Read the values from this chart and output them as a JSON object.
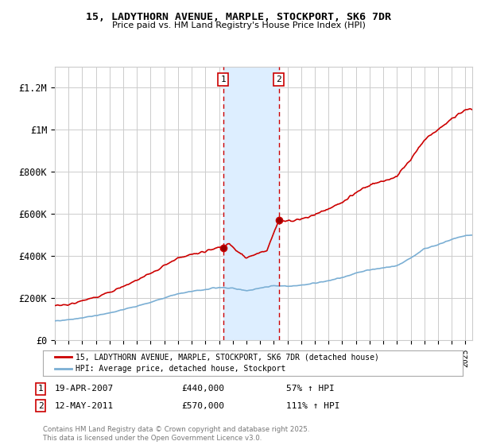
{
  "title": "15, LADYTHORN AVENUE, MARPLE, STOCKPORT, SK6 7DR",
  "subtitle": "Price paid vs. HM Land Registry's House Price Index (HPI)",
  "ylabel_ticks": [
    "£0",
    "£200K",
    "£400K",
    "£600K",
    "£800K",
    "£1M",
    "£1.2M"
  ],
  "ytick_values": [
    0,
    200000,
    400000,
    600000,
    800000,
    1000000,
    1200000
  ],
  "ylim": [
    0,
    1300000
  ],
  "xlim_start": 1995.0,
  "xlim_end": 2025.5,
  "purchase1_date": 2007.3,
  "purchase1_price": 440000,
  "purchase2_date": 2011.37,
  "purchase2_price": 570000,
  "red_line_color": "#cc0000",
  "blue_line_color": "#7bafd4",
  "shade_color": "#ddeeff",
  "dashed_line_color": "#cc0000",
  "background_color": "#ffffff",
  "grid_color": "#cccccc",
  "legend_label_red": "15, LADYTHORN AVENUE, MARPLE, STOCKPORT, SK6 7DR (detached house)",
  "legend_label_blue": "HPI: Average price, detached house, Stockport",
  "footer": "Contains HM Land Registry data © Crown copyright and database right 2025.\nThis data is licensed under the Open Government Licence v3.0.",
  "purchase1_annotation_date": "19-APR-2007",
  "purchase1_annotation_price": "£440,000",
  "purchase1_annotation_hpi": "57% ↑ HPI",
  "purchase2_annotation_date": "12-MAY-2011",
  "purchase2_annotation_price": "£570,000",
  "purchase2_annotation_hpi": "111% ↑ HPI"
}
